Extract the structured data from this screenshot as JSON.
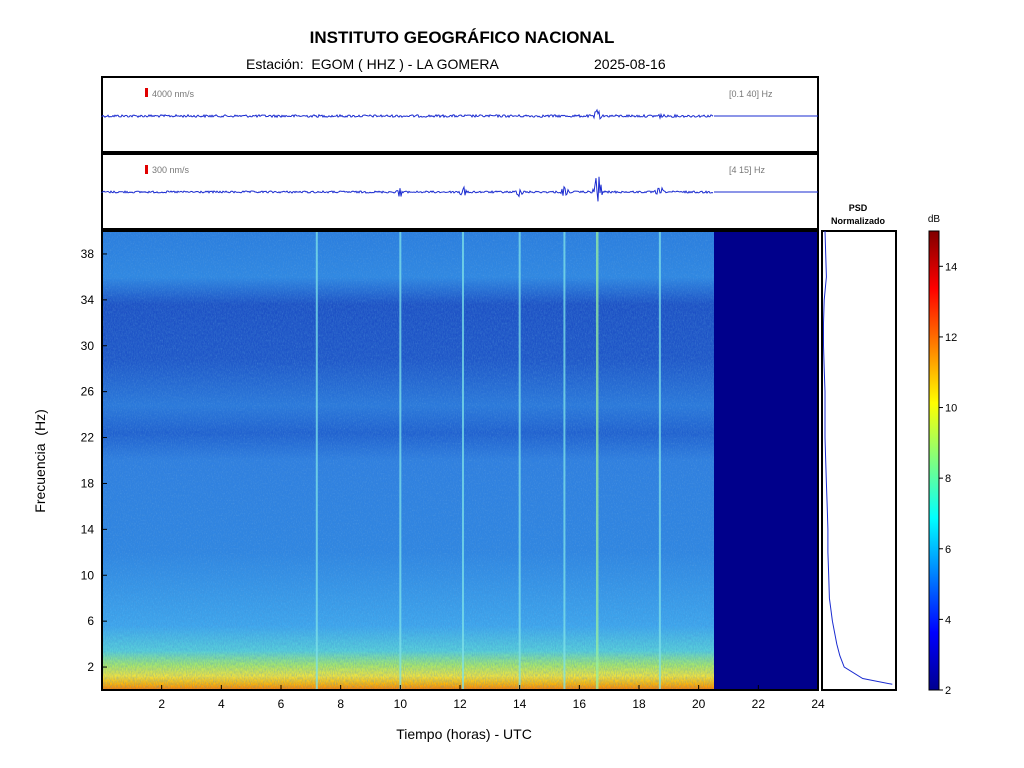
{
  "header": {
    "title": "INSTITUTO GEOGRÁFICO NACIONAL",
    "station_label": "Estación:",
    "station_value": "EGOM ( HHZ ) - LA GOMERA",
    "date": "2025-08-16"
  },
  "colors": {
    "trace": "#1a2bd0",
    "scale_marker": "#e00000",
    "no_data": "#00008b",
    "psd_line": "#1a2bd0"
  },
  "chart_data": [
    {
      "type": "line",
      "name": "trace-broadband",
      "scale_label": "4000 nm/s",
      "band_label": "[0.1 40] Hz",
      "x_range_hours": [
        0,
        24
      ],
      "data_end_hours": 20.5,
      "events_hours": [
        16.6,
        18.7
      ]
    },
    {
      "type": "line",
      "name": "trace-filtered",
      "scale_label": "300 nm/s",
      "band_label": "[4 15] Hz",
      "x_range_hours": [
        0,
        24
      ],
      "data_end_hours": 20.5,
      "events_hours": [
        10.0,
        12.1,
        14.0,
        15.5,
        16.6,
        18.7
      ]
    },
    {
      "type": "heatmap",
      "name": "spectrogram",
      "xlabel": "Tiempo (horas) - UTC",
      "ylabel": "Frecuencia  (Hz)",
      "xlim": [
        0,
        24
      ],
      "ylim": [
        0,
        40
      ],
      "xticks": [
        2,
        4,
        6,
        8,
        10,
        12,
        14,
        16,
        18,
        20,
        22,
        24
      ],
      "yticks": [
        2,
        6,
        10,
        14,
        18,
        22,
        26,
        30,
        34,
        38
      ],
      "data_end_hours": 20.5,
      "event_lines_hours": [
        7.2,
        10.0,
        12.1,
        14.0,
        15.5,
        16.6,
        18.7
      ],
      "colorbar": {
        "label": "dB",
        "range": [
          2,
          15
        ],
        "ticks": [
          2,
          4,
          6,
          8,
          10,
          12,
          14
        ]
      }
    },
    {
      "type": "line",
      "name": "psd",
      "title_line1": "PSD",
      "title_line2": "Normalizado",
      "freq_hz": [
        0.5,
        1,
        2,
        3,
        4,
        5,
        6,
        8,
        10,
        12,
        14,
        16,
        18,
        20,
        22,
        24,
        26,
        28,
        30,
        32,
        34,
        36,
        38,
        40
      ],
      "value": [
        0.95,
        0.55,
        0.3,
        0.24,
        0.2,
        0.17,
        0.14,
        0.1,
        0.09,
        0.08,
        0.08,
        0.07,
        0.06,
        0.05,
        0.04,
        0.04,
        0.04,
        0.03,
        0.02,
        0.02,
        0.03,
        0.06,
        0.05,
        0.04
      ]
    }
  ]
}
